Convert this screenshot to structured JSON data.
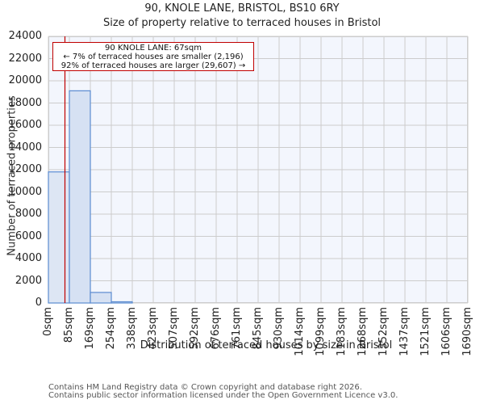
{
  "header": {
    "title": "90, KNOLE LANE, BRISTOL, BS10 6RY",
    "subtitle": "Size of property relative to terraced houses in Bristol"
  },
  "annotation": {
    "line1": "90 KNOLE LANE: 67sqm",
    "line2": "← 7% of terraced houses are smaller (2,196)",
    "line3": "92% of terraced houses are larger (29,607) →"
  },
  "axes": {
    "xlabel": "Distribution of terraced houses by size in Bristol",
    "ylabel": "Number of terraced properties",
    "yticks": [
      "0",
      "2000",
      "4000",
      "6000",
      "8000",
      "10000",
      "12000",
      "14000",
      "16000",
      "18000",
      "20000",
      "22000",
      "24000"
    ],
    "xticks": [
      "0sqm",
      "85sqm",
      "169sqm",
      "254sqm",
      "338sqm",
      "423sqm",
      "507sqm",
      "592sqm",
      "676sqm",
      "761sqm",
      "845sqm",
      "930sqm",
      "1014sqm",
      "1099sqm",
      "1183sqm",
      "1268sqm",
      "1352sqm",
      "1437sqm",
      "1521sqm",
      "1606sqm",
      "1690sqm"
    ]
  },
  "footer": {
    "line1": "Contains HM Land Registry data © Crown copyright and database right 2026.",
    "line2": "Contains public sector information licensed under the Open Government Licence v3.0."
  },
  "colors": {
    "bar_fill": "#d6e1f3",
    "bar_fill_highlight": "#dde6f4",
    "bar_edge": "#5b8bd0",
    "marker_line": "#c00000",
    "plot_bg": "#f3f6fd",
    "grid": "#cccccc"
  },
  "chart_data": {
    "type": "bar",
    "title": "90, KNOLE LANE, BRISTOL, BS10 6RY",
    "subtitle": "Size of property relative to terraced houses in Bristol",
    "xlabel": "Distribution of terraced houses by size in Bristol",
    "ylabel": "Number of terraced properties",
    "ylim": [
      0,
      24000
    ],
    "grid": true,
    "bin_edges": [
      0,
      85,
      169,
      254,
      338,
      423,
      507,
      592,
      676,
      761,
      845,
      930,
      1014,
      1099,
      1183,
      1268,
      1352,
      1437,
      1521,
      1606,
      1690
    ],
    "categories": [
      "0-85sqm",
      "85-169sqm",
      "169-254sqm",
      "254-338sqm",
      "338-423sqm",
      "423-507sqm",
      "507-592sqm",
      "592-676sqm",
      "676-761sqm",
      "761-845sqm",
      "845-930sqm",
      "930-1014sqm",
      "1014-1099sqm",
      "1099-1183sqm",
      "1183-1268sqm",
      "1268-1352sqm",
      "1352-1437sqm",
      "1437-1521sqm",
      "1521-1606sqm",
      "1606-1690sqm"
    ],
    "values": [
      11800,
      19100,
      950,
      110,
      0,
      0,
      0,
      0,
      0,
      0,
      0,
      0,
      0,
      0,
      0,
      0,
      0,
      0,
      0,
      0
    ],
    "marker": {
      "label": "90 KNOLE LANE",
      "value_sqm": 67
    },
    "annotations": [
      "90 KNOLE LANE: 67sqm",
      "← 7% of terraced houses are smaller (2,196)",
      "92% of terraced houses are larger (29,607) →"
    ]
  }
}
